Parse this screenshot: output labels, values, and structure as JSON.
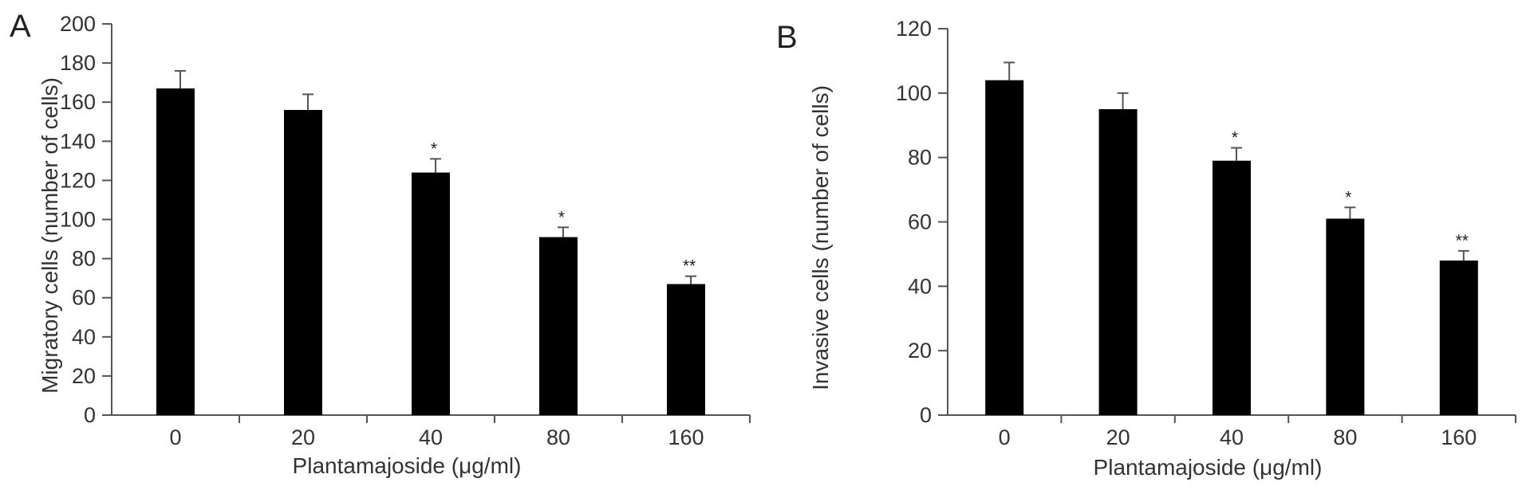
{
  "chart_data": [
    {
      "type": "bar",
      "panel_label": "A",
      "categories": [
        "0",
        "20",
        "40",
        "80",
        "160"
      ],
      "values": [
        167,
        156,
        124,
        91,
        67
      ],
      "errors": [
        9,
        8,
        7,
        5,
        4
      ],
      "significance": [
        "",
        "",
        "*",
        "*",
        "**"
      ],
      "xlabel": "Plantamajoside (μg/ml)",
      "ylabel": "Migratory cells (number of cells)",
      "ylim": [
        0,
        200
      ],
      "yticks": [
        "0",
        "20",
        "40",
        "60",
        "80",
        "100",
        "120",
        "140",
        "160",
        "180",
        "200"
      ],
      "grid": false,
      "bar_color": "#000000"
    },
    {
      "type": "bar",
      "panel_label": "B",
      "categories": [
        "0",
        "20",
        "40",
        "80",
        "160"
      ],
      "values": [
        104,
        95,
        79,
        61,
        48
      ],
      "errors": [
        5.5,
        5,
        4,
        3.5,
        3
      ],
      "significance": [
        "",
        "",
        "*",
        "*",
        "**"
      ],
      "xlabel": "Plantamajoside (μg/ml)",
      "ylabel": "Invasive cells (number of cells)",
      "ylim": [
        0,
        120
      ],
      "yticks": [
        "0",
        "20",
        "40",
        "60",
        "80",
        "100",
        "120"
      ],
      "grid": false,
      "bar_color": "#000000"
    }
  ]
}
